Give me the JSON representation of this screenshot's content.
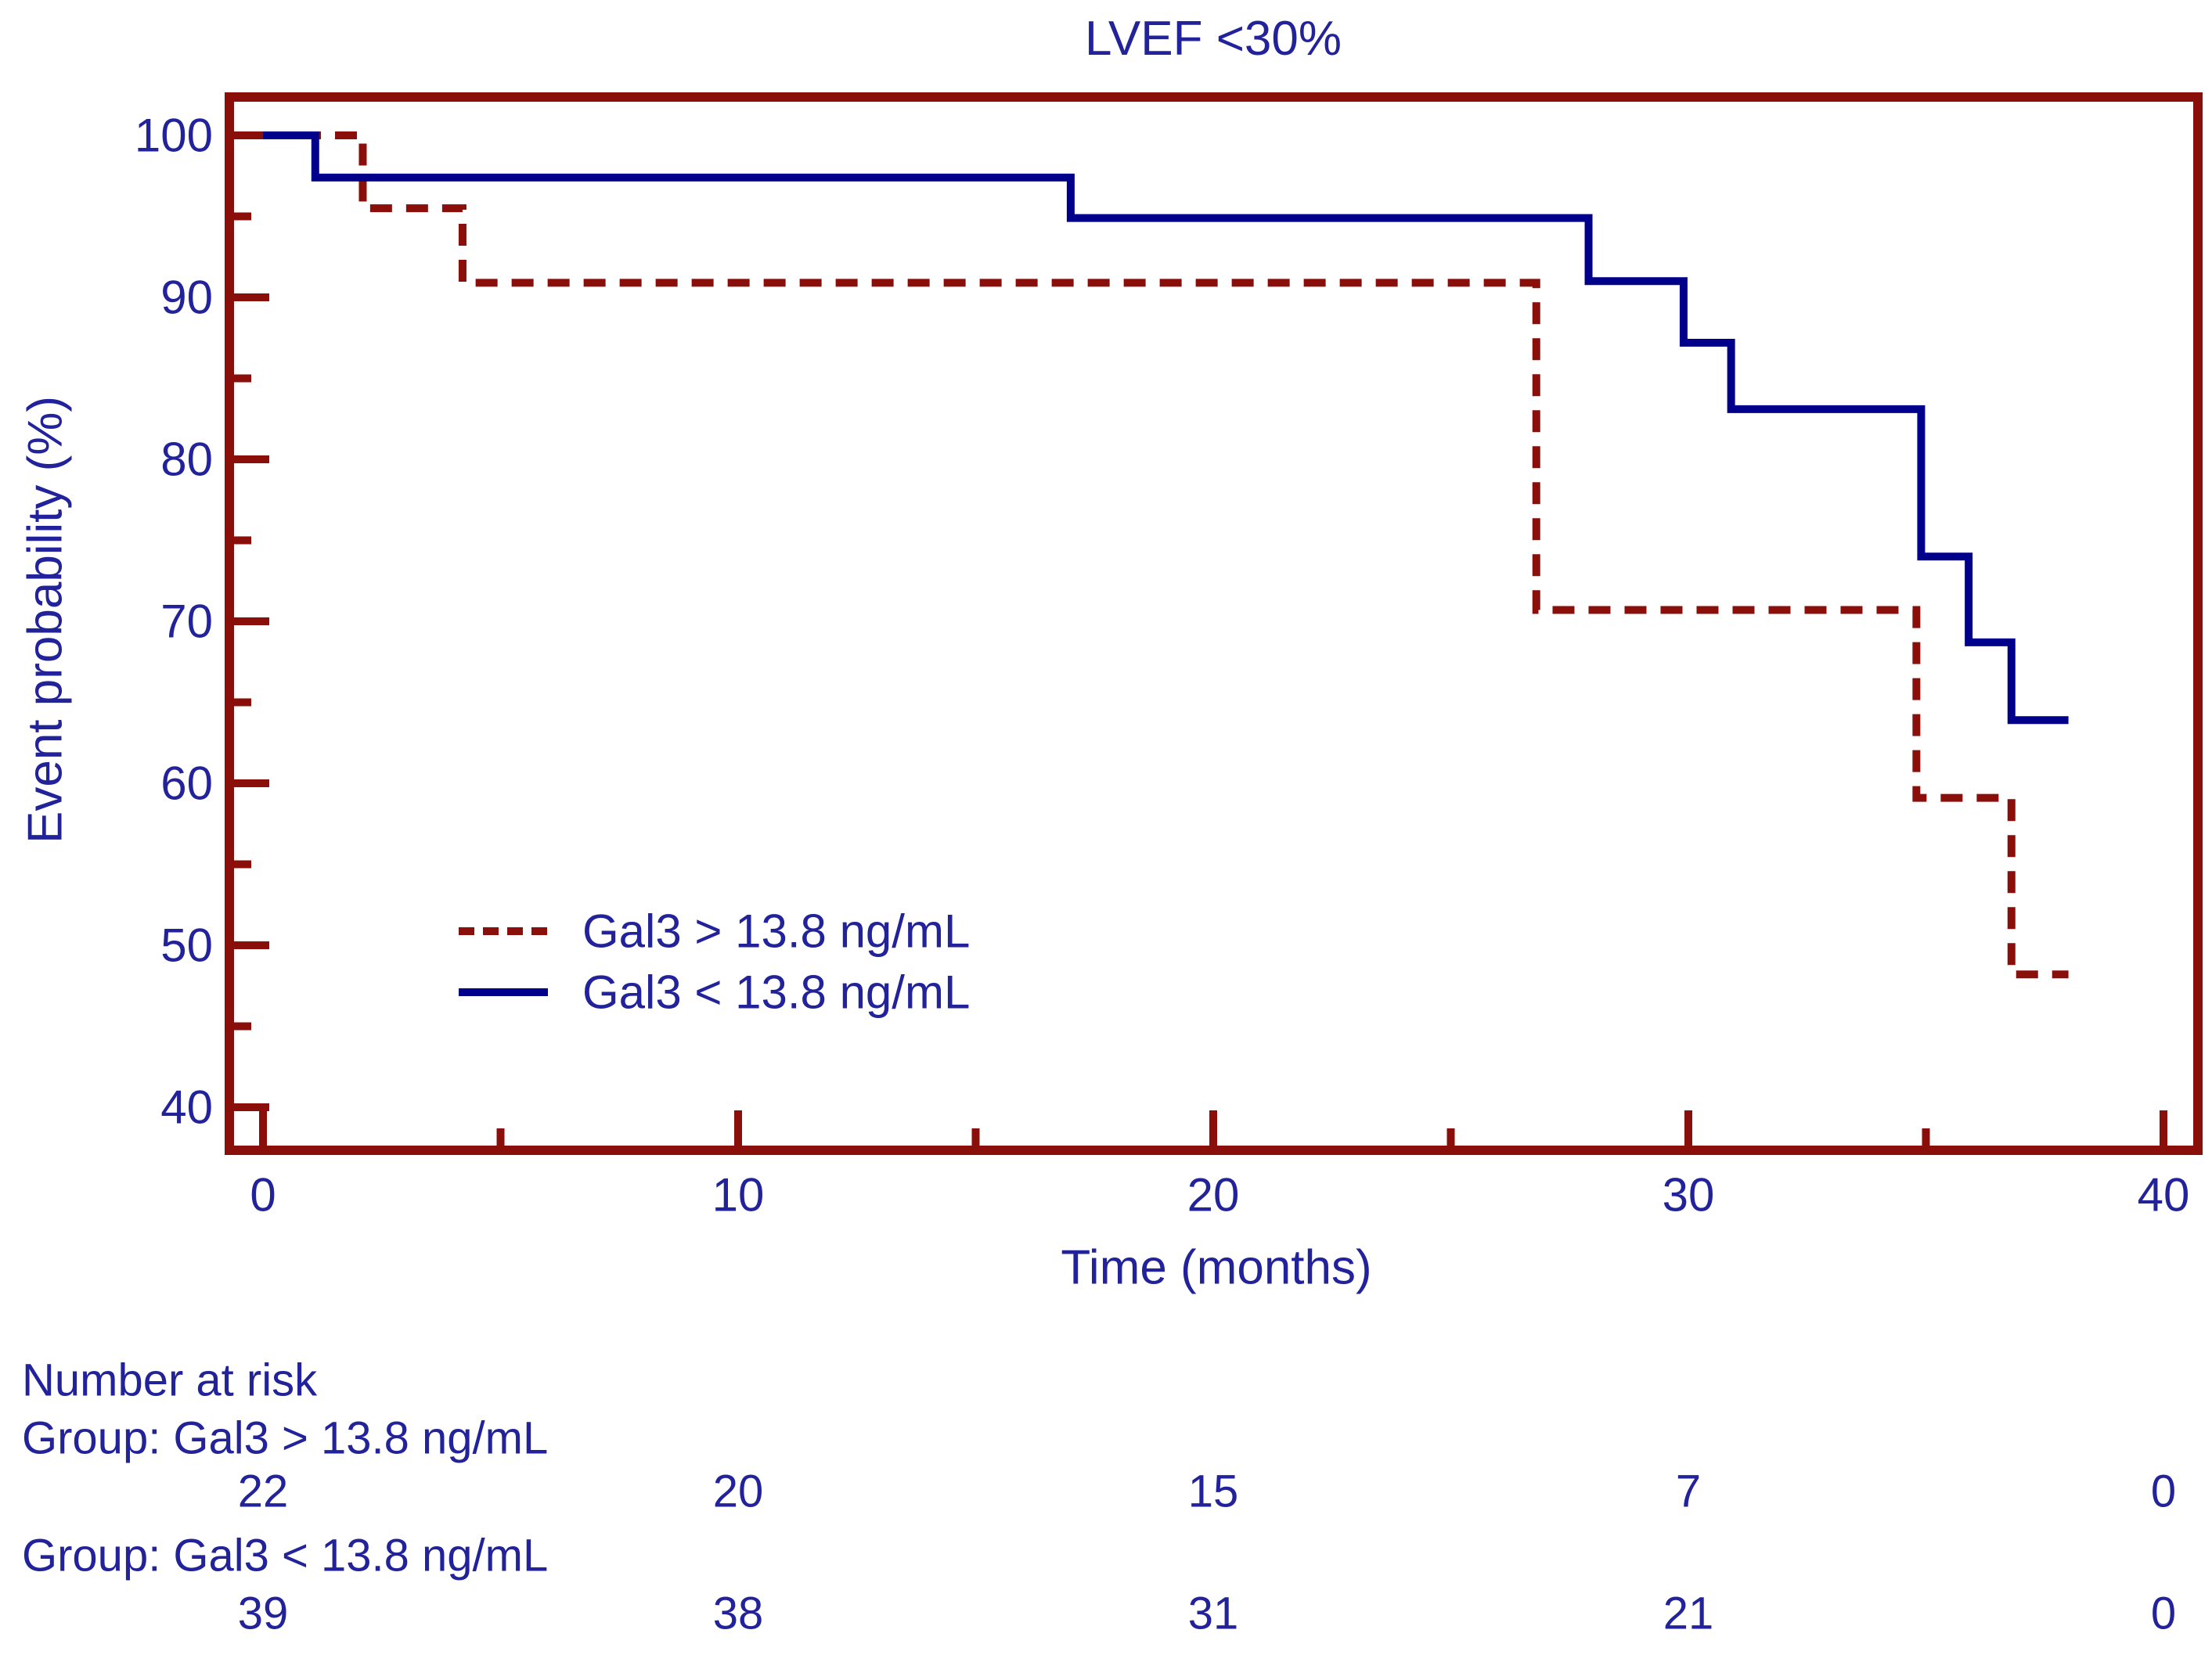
{
  "title": "LVEF <30%",
  "axes": {
    "x": {
      "label": "Time (months)",
      "range": [
        0,
        40
      ],
      "major_ticks": [
        0,
        10,
        20,
        30,
        40
      ],
      "minor_ticks": [
        5,
        15,
        25,
        35
      ]
    },
    "y": {
      "label": "Event probability (%)",
      "range": [
        40,
        100
      ],
      "major_ticks": [
        100,
        90,
        80,
        70,
        60,
        50,
        40
      ],
      "minor_ticks": [
        95,
        85,
        75,
        65,
        55,
        45
      ]
    }
  },
  "legend": {
    "entries": [
      {
        "label": "Gal3 > 13.8 ng/mL",
        "style": "dashed",
        "color": "#8A0F0A"
      },
      {
        "label": "Gal3 < 13.8 ng/mL",
        "style": "solid",
        "color": "#00008B"
      }
    ]
  },
  "chart_data": {
    "type": "line",
    "subtype": "kaplan-meier-step-curves",
    "title": "LVEF <30%",
    "xlabel": "Time (months)",
    "ylabel": "Event probability (%)",
    "xlim": [
      0,
      40
    ],
    "ylim": [
      40,
      100
    ],
    "grid": false,
    "legend_position": "inside-left-middle",
    "series": [
      {
        "name": "Gal3 > 13.8 ng/mL",
        "color": "#8A0F0A",
        "line_style": "dashed",
        "steps": [
          [
            0,
            100
          ],
          [
            2.1,
            95.5
          ],
          [
            4.2,
            90.9
          ],
          [
            26.8,
            70.7
          ],
          [
            34.8,
            59.1
          ],
          [
            36.8,
            48.2
          ],
          [
            38,
            48.2
          ]
        ]
      },
      {
        "name": "Gal3 < 13.8 ng/mL",
        "color": "#00008B",
        "line_style": "solid",
        "steps": [
          [
            0,
            100
          ],
          [
            1.1,
            97.4
          ],
          [
            17,
            94.9
          ],
          [
            27.9,
            91.0
          ],
          [
            29.9,
            87.2
          ],
          [
            30.9,
            83.1
          ],
          [
            34.9,
            74.0
          ],
          [
            35.9,
            68.7
          ],
          [
            36.8,
            63.9
          ],
          [
            38,
            63.9
          ]
        ]
      }
    ]
  },
  "risk_table": {
    "heading": "Number at risk",
    "times": [
      0,
      10,
      20,
      30,
      40
    ],
    "groups": [
      {
        "label": "Group: Gal3 > 13.8 ng/mL",
        "counts": [
          22,
          20,
          15,
          7,
          0
        ]
      },
      {
        "label": "Group: Gal3 < 13.8 ng/mL",
        "counts": [
          39,
          38,
          31,
          21,
          0
        ]
      }
    ]
  },
  "colors": {
    "background": "#FFFFFF",
    "frame": "#8A0F0A",
    "text": "#22229A"
  }
}
